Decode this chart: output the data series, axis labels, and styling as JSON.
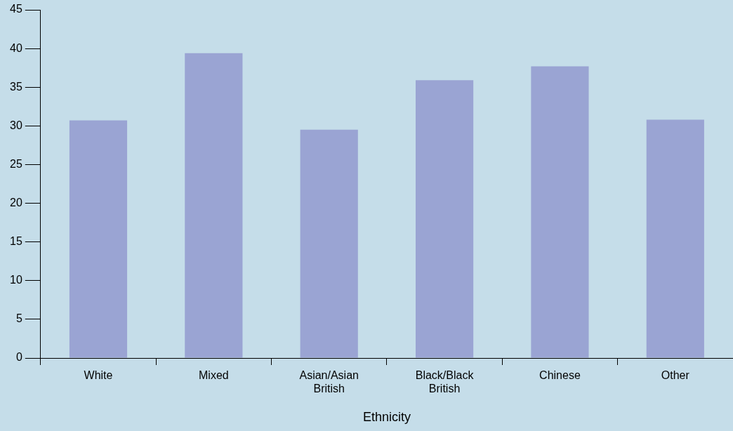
{
  "chart_data": {
    "type": "bar",
    "xlabel": "Ethnicity",
    "categories": [
      "White",
      "Mixed",
      "Asian/Asian British",
      "Black/Black British",
      "Chinese",
      "Other"
    ],
    "values": [
      30.7,
      39.4,
      29.5,
      35.9,
      37.7,
      30.8
    ],
    "color": "#9aa4d3",
    "ylim": [
      0,
      45
    ],
    "yticks": [
      0,
      5,
      10,
      15,
      20,
      25,
      30,
      35,
      40,
      45
    ],
    "grid": false,
    "legend": false
  }
}
